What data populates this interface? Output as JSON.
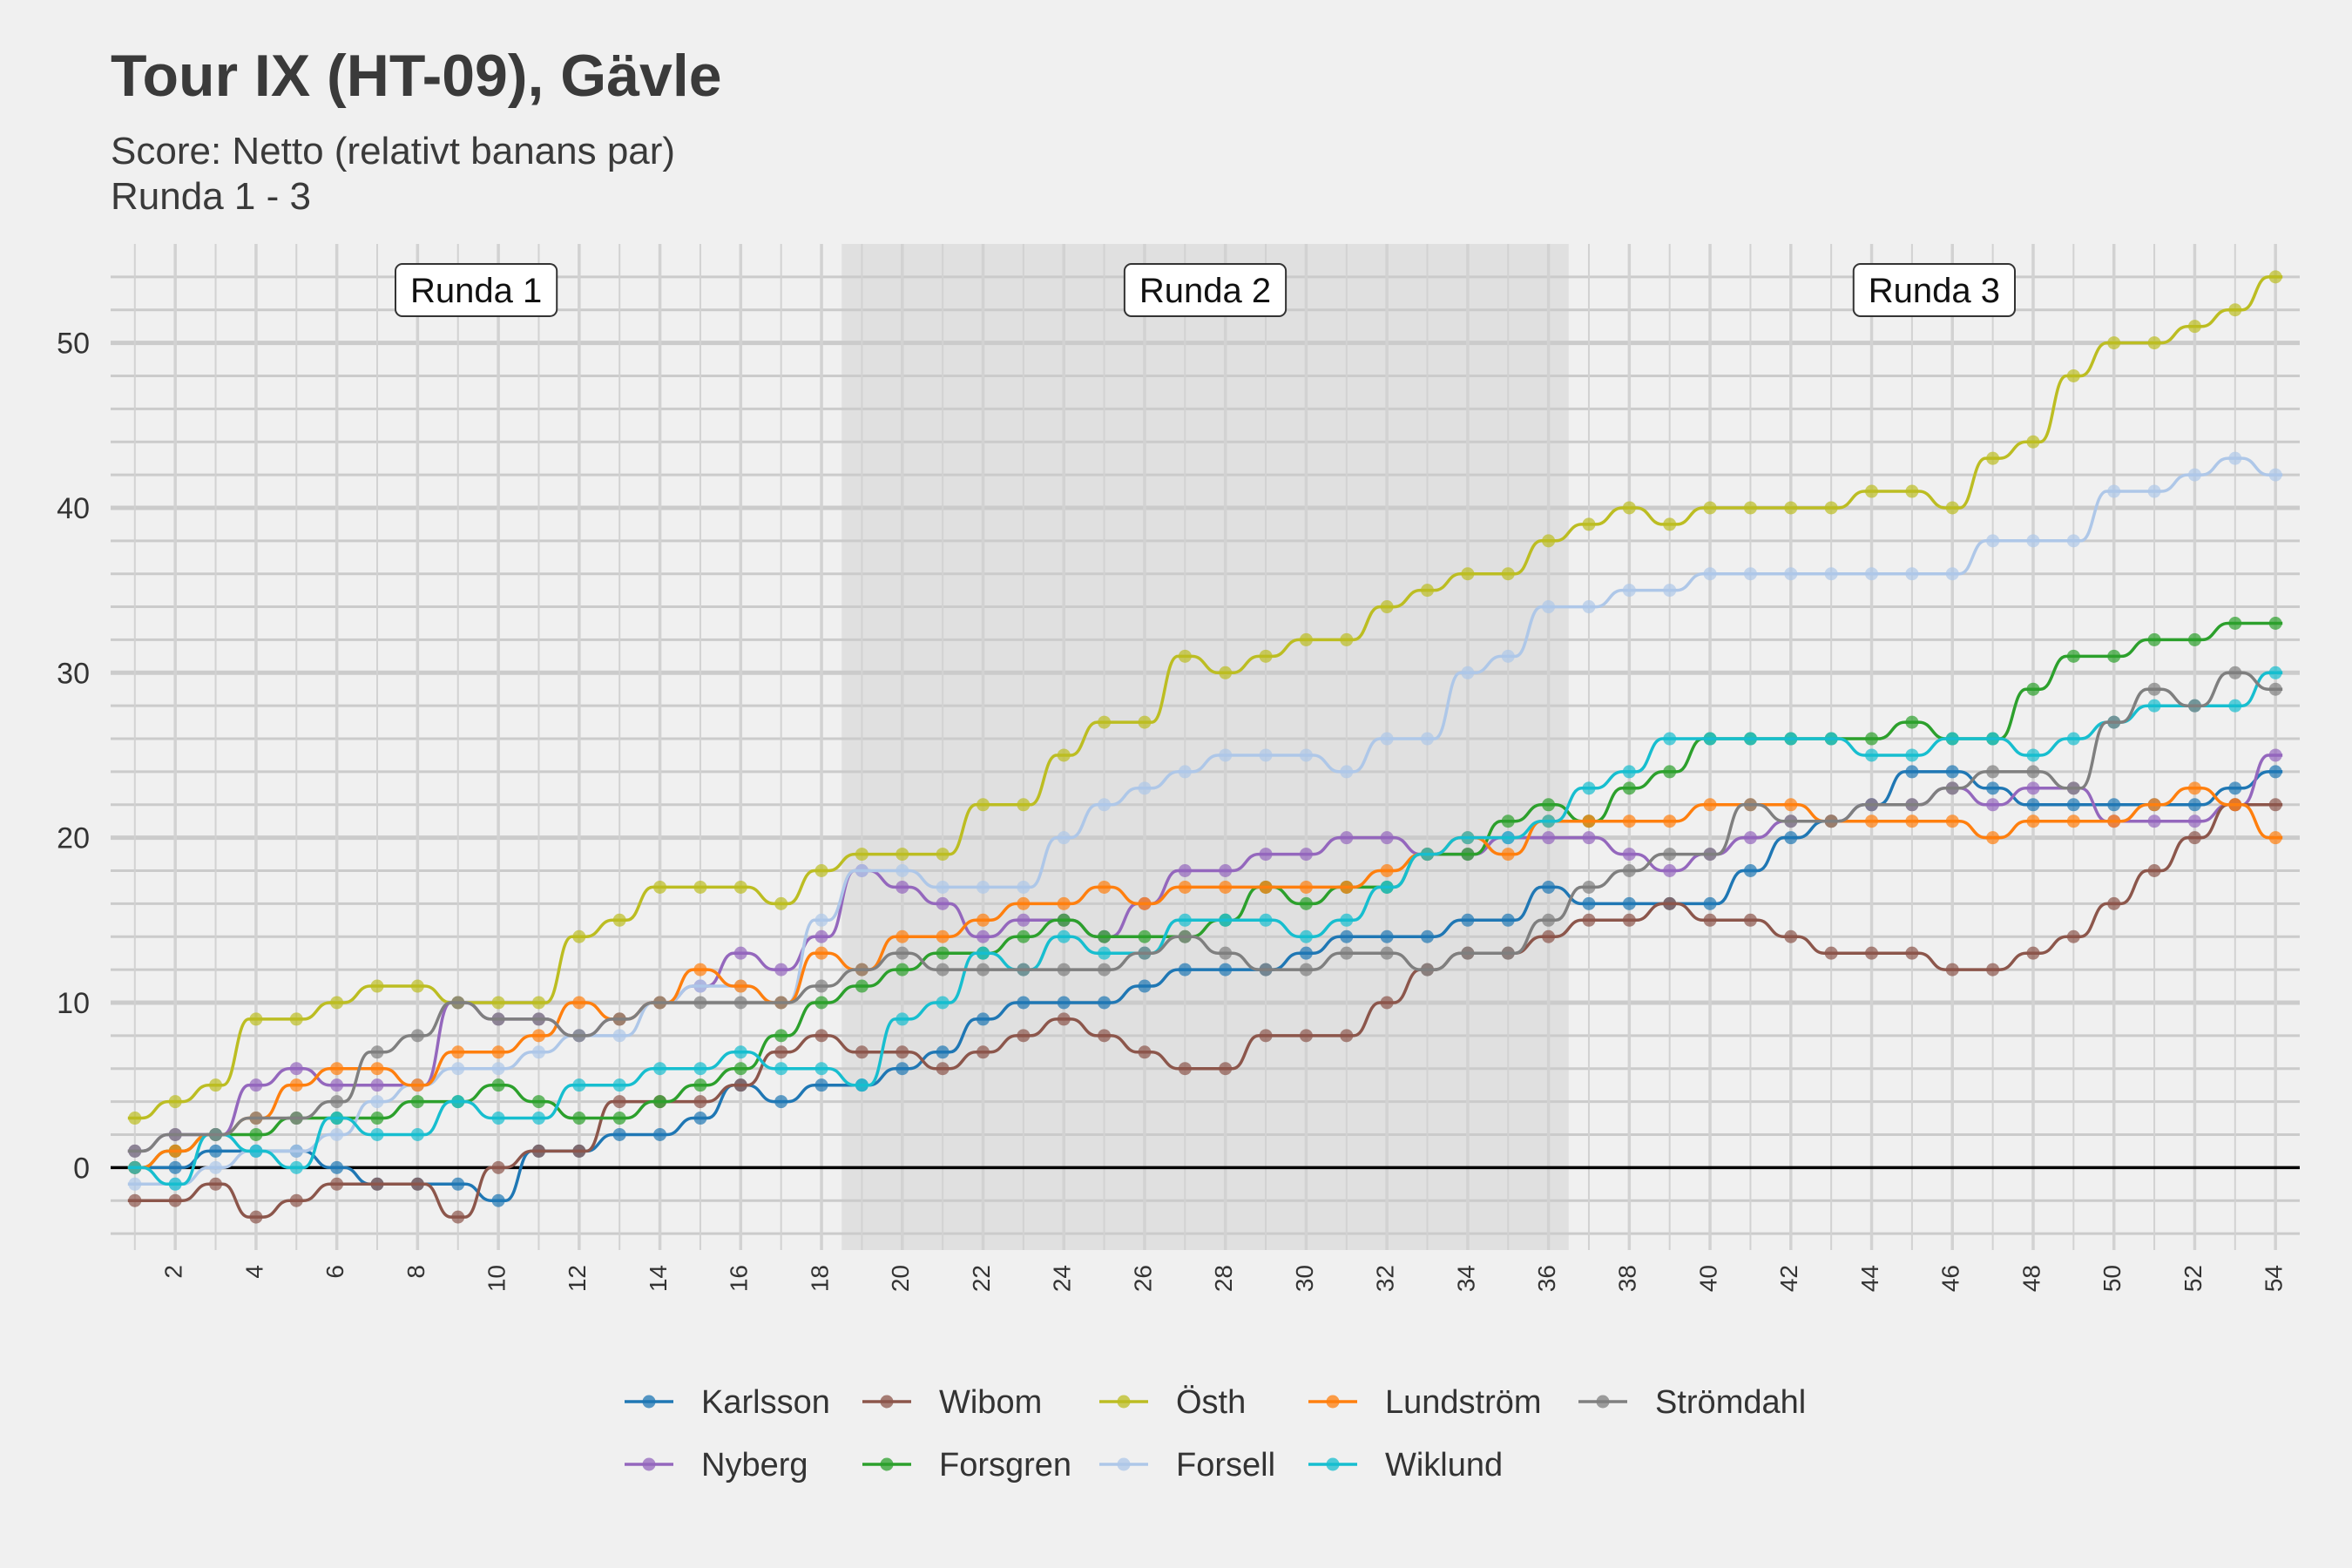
{
  "title": "Tour IX (HT-09), Gävle",
  "subtitle_line1": "Score: Netto (relativt banans par)",
  "subtitle_line2": "Runda 1 - 3",
  "chart_data": {
    "type": "line",
    "x": [
      1,
      2,
      3,
      4,
      5,
      6,
      7,
      8,
      9,
      10,
      11,
      12,
      13,
      14,
      15,
      16,
      17,
      18,
      19,
      20,
      21,
      22,
      23,
      24,
      25,
      26,
      27,
      28,
      29,
      30,
      31,
      32,
      33,
      34,
      35,
      36,
      37,
      38,
      39,
      40,
      41,
      42,
      43,
      44,
      45,
      46,
      47,
      48,
      49,
      50,
      51,
      52,
      53,
      54
    ],
    "xlim": [
      0.4,
      54.6
    ],
    "ylim": [
      -5,
      56
    ],
    "xticks": [
      2,
      4,
      6,
      8,
      10,
      12,
      14,
      16,
      18,
      20,
      22,
      24,
      26,
      28,
      30,
      32,
      34,
      36,
      38,
      40,
      42,
      44,
      46,
      48,
      50,
      52,
      54
    ],
    "yticks": [
      0,
      10,
      20,
      30,
      40,
      50
    ],
    "zero_line": true,
    "grid": true,
    "legend_position": "bottom",
    "rounds": [
      {
        "label": "Runda 1",
        "from": 0.4,
        "to": 18.5,
        "shaded": false
      },
      {
        "label": "Runda 2",
        "from": 18.5,
        "to": 36.5,
        "shaded": true
      },
      {
        "label": "Runda 3",
        "from": 36.5,
        "to": 54.6,
        "shaded": false
      }
    ],
    "series": [
      {
        "name": "Karlsson",
        "color": "#1f77b4",
        "values": [
          0,
          0,
          1,
          1,
          1,
          0,
          -1,
          -1,
          -1,
          -2,
          1,
          1,
          2,
          2,
          3,
          5,
          4,
          5,
          5,
          6,
          7,
          9,
          10,
          10,
          10,
          11,
          12,
          12,
          12,
          13,
          14,
          14,
          14,
          15,
          15,
          17,
          16,
          16,
          16,
          16,
          18,
          20,
          21,
          22,
          24,
          24,
          23,
          22,
          22,
          22,
          22,
          22,
          23,
          24
        ]
      },
      {
        "name": "Nyberg",
        "color": "#9467bd",
        "values": [
          1,
          2,
          2,
          5,
          6,
          5,
          5,
          5,
          10,
          9,
          9,
          8,
          9,
          10,
          11,
          13,
          12,
          14,
          18,
          17,
          16,
          14,
          15,
          15,
          14,
          16,
          18,
          18,
          19,
          19,
          20,
          20,
          19,
          19,
          20,
          20,
          20,
          19,
          18,
          19,
          20,
          21,
          21,
          22,
          22,
          23,
          22,
          23,
          23,
          21,
          21,
          21,
          22,
          25
        ]
      },
      {
        "name": "Wibom",
        "color": "#8c564b",
        "values": [
          -2,
          -2,
          -1,
          -3,
          -2,
          -1,
          -1,
          -1,
          -3,
          0,
          1,
          1,
          4,
          4,
          4,
          5,
          7,
          8,
          7,
          7,
          6,
          7,
          8,
          9,
          8,
          7,
          6,
          6,
          8,
          8,
          8,
          10,
          12,
          13,
          13,
          14,
          15,
          15,
          16,
          15,
          15,
          14,
          13,
          13,
          13,
          12,
          12,
          13,
          14,
          16,
          18,
          20,
          22,
          22
        ]
      },
      {
        "name": "Forsgren",
        "color": "#2ca02c",
        "values": [
          0,
          1,
          2,
          2,
          3,
          3,
          3,
          4,
          4,
          5,
          4,
          3,
          3,
          4,
          5,
          6,
          8,
          10,
          11,
          12,
          13,
          13,
          14,
          15,
          14,
          14,
          14,
          15,
          17,
          16,
          17,
          17,
          19,
          19,
          21,
          22,
          21,
          23,
          24,
          26,
          26,
          26,
          26,
          26,
          27,
          26,
          26,
          29,
          31,
          31,
          32,
          32,
          33,
          33
        ]
      },
      {
        "name": "Östh",
        "color": "#bcbd22",
        "values": [
          3,
          4,
          5,
          9,
          9,
          10,
          11,
          11,
          10,
          10,
          10,
          14,
          15,
          17,
          17,
          17,
          16,
          18,
          19,
          19,
          19,
          22,
          22,
          25,
          27,
          27,
          31,
          30,
          31,
          32,
          32,
          34,
          35,
          36,
          36,
          38,
          39,
          40,
          39,
          40,
          40,
          40,
          40,
          41,
          41,
          40,
          43,
          44,
          48,
          50,
          50,
          51,
          52,
          54
        ]
      },
      {
        "name": "Forsell",
        "color": "#aec7e8",
        "values": [
          -1,
          -1,
          0,
          1,
          1,
          2,
          4,
          5,
          6,
          6,
          7,
          8,
          8,
          10,
          11,
          11,
          10,
          15,
          18,
          18,
          17,
          17,
          17,
          20,
          22,
          23,
          24,
          25,
          25,
          25,
          24,
          26,
          26,
          30,
          31,
          34,
          34,
          35,
          35,
          36,
          36,
          36,
          36,
          36,
          36,
          36,
          38,
          38,
          38,
          41,
          41,
          42,
          43,
          42
        ]
      },
      {
        "name": "Lundström",
        "color": "#ff7f0e",
        "values": [
          0,
          1,
          2,
          3,
          5,
          6,
          6,
          5,
          7,
          7,
          8,
          10,
          9,
          10,
          12,
          11,
          10,
          13,
          12,
          14,
          14,
          15,
          16,
          16,
          17,
          16,
          17,
          17,
          17,
          17,
          17,
          18,
          19,
          20,
          19,
          21,
          21,
          21,
          21,
          22,
          22,
          22,
          21,
          21,
          21,
          21,
          20,
          21,
          21,
          21,
          22,
          23,
          22,
          20
        ]
      },
      {
        "name": "Wiklund",
        "color": "#17becf",
        "values": [
          0,
          -1,
          2,
          1,
          0,
          3,
          2,
          2,
          4,
          3,
          3,
          5,
          5,
          6,
          6,
          7,
          6,
          6,
          5,
          9,
          10,
          13,
          12,
          14,
          13,
          13,
          15,
          15,
          15,
          14,
          15,
          17,
          19,
          20,
          20,
          21,
          23,
          24,
          26,
          26,
          26,
          26,
          26,
          25,
          25,
          26,
          26,
          25,
          26,
          27,
          28,
          28,
          28,
          30
        ]
      },
      {
        "name": "Strömdahl",
        "color": "#7f7f7f",
        "values": [
          1,
          2,
          2,
          3,
          3,
          4,
          7,
          8,
          10,
          9,
          9,
          8,
          9,
          10,
          10,
          10,
          10,
          11,
          12,
          13,
          12,
          12,
          12,
          12,
          12,
          13,
          14,
          13,
          12,
          12,
          13,
          13,
          12,
          13,
          13,
          15,
          17,
          18,
          19,
          19,
          22,
          21,
          21,
          22,
          22,
          23,
          24,
          24,
          23,
          27,
          29,
          28,
          30,
          29
        ]
      }
    ]
  },
  "legend_order": [
    "Karlsson",
    "Wibom",
    "Östh",
    "Lundström",
    "Strömdahl",
    "Nyberg",
    "Forsgren",
    "Forsell",
    "Wiklund"
  ]
}
